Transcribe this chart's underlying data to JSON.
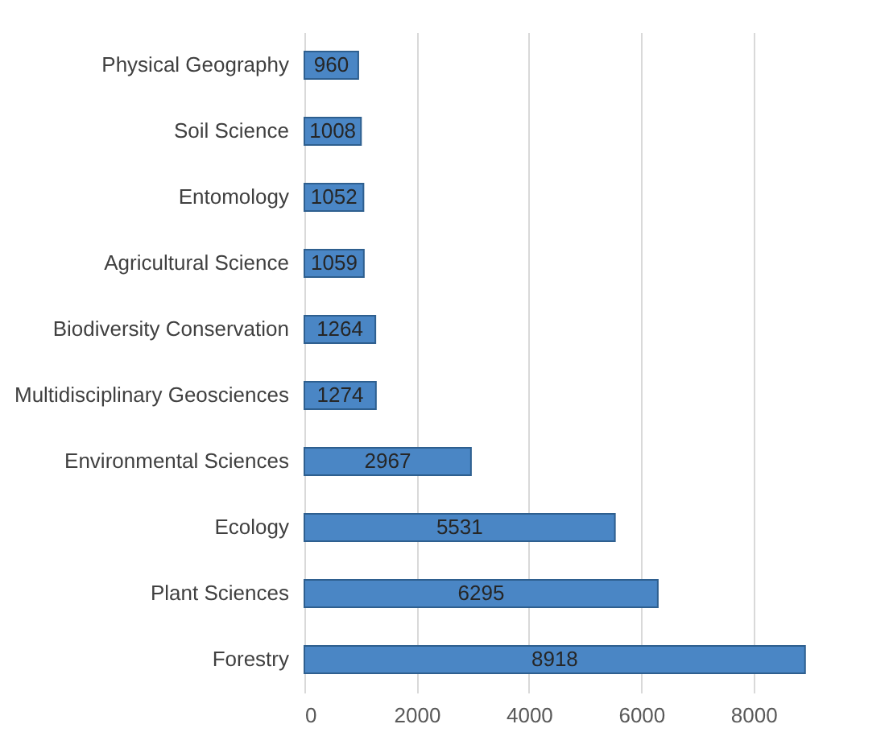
{
  "chart_data": {
    "type": "bar",
    "orientation": "horizontal",
    "categories": [
      "Physical Geography",
      "Soil Science",
      "Entomology",
      "Agricultural Science",
      "Biodiversity Conservation",
      "Multidisciplinary Geosciences",
      "Environmental Sciences",
      "Ecology",
      "Plant Sciences",
      "Forestry"
    ],
    "values": [
      960,
      1008,
      1052,
      1059,
      1264,
      1274,
      2967,
      5531,
      6295,
      8918
    ],
    "color": "#4a86c5",
    "xlim": [
      0,
      8950
    ],
    "xticks": [
      0,
      2000,
      4000,
      6000,
      8000
    ],
    "grid": "x",
    "data_labels": true
  }
}
